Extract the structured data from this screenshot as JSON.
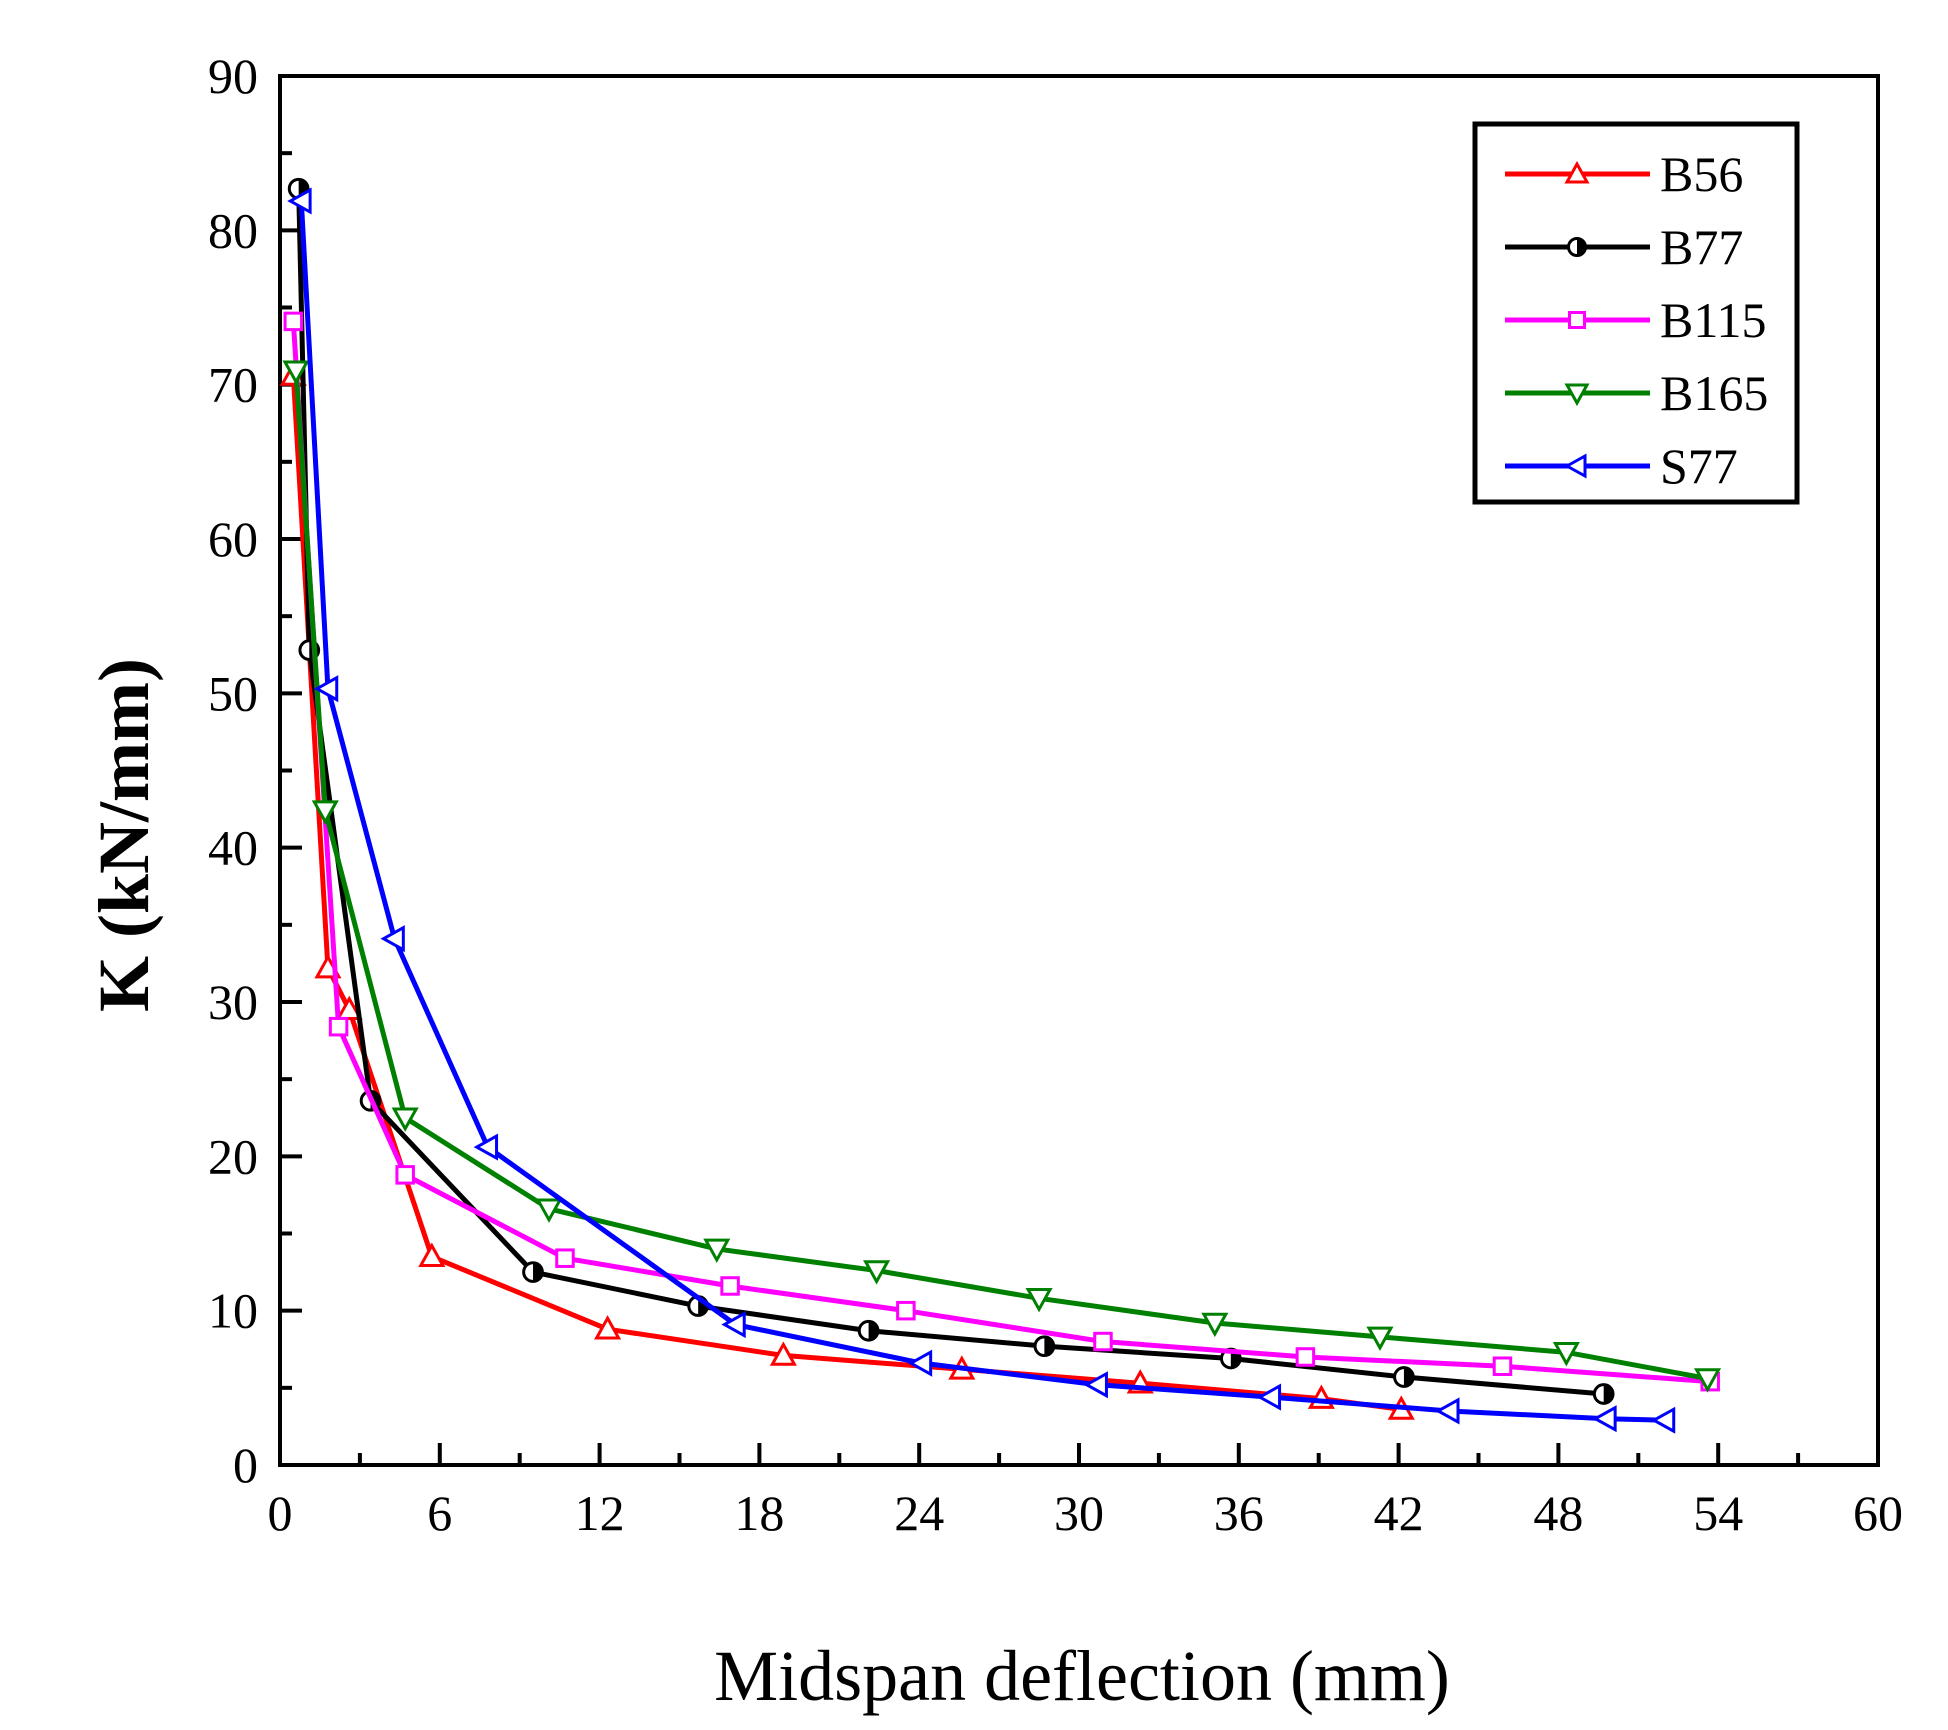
{
  "chart_data": {
    "type": "line",
    "title": "",
    "xlabel": "Midspan deflection (mm)",
    "ylabel": "K (kN/mm)",
    "xlim": [
      0,
      60
    ],
    "ylim": [
      0,
      90
    ],
    "xticks": [
      0,
      6,
      12,
      18,
      24,
      30,
      36,
      42,
      48,
      54,
      60
    ],
    "yticks": [
      0,
      10,
      20,
      30,
      40,
      50,
      60,
      70,
      80,
      90
    ],
    "grid": false,
    "legend_position": "top-right",
    "series": [
      {
        "name": "B56",
        "color": "#ff0000",
        "marker": "triangle-up",
        "x": [
          0.5,
          1.8,
          2.6,
          5.7,
          12.3,
          18.9,
          25.6,
          32.3,
          39.1,
          42.1
        ],
        "y": [
          70.6,
          32.2,
          29.5,
          13.5,
          8.8,
          7.1,
          6.2,
          5.3,
          4.3,
          3.6
        ]
      },
      {
        "name": "B77",
        "color": "#000000",
        "marker": "circle-half",
        "x": [
          0.7,
          1.1,
          3.4,
          9.5,
          15.7,
          22.1,
          28.7,
          35.7,
          42.2,
          49.7
        ],
        "y": [
          82.7,
          52.8,
          23.6,
          12.5,
          10.3,
          8.7,
          7.7,
          6.9,
          5.7,
          4.6
        ]
      },
      {
        "name": "B115",
        "color": "#ff00ff",
        "marker": "square",
        "x": [
          0.5,
          2.2,
          4.7,
          10.7,
          16.9,
          23.5,
          30.9,
          38.5,
          45.9,
          53.7
        ],
        "y": [
          74.1,
          28.4,
          18.8,
          13.4,
          11.6,
          10.0,
          8.0,
          7.0,
          6.4,
          5.4
        ]
      },
      {
        "name": "B165",
        "color": "#008000",
        "marker": "triangle-down",
        "x": [
          0.6,
          1.7,
          4.7,
          10.1,
          16.4,
          22.4,
          28.5,
          35.1,
          41.3,
          48.3,
          53.6
        ],
        "y": [
          70.9,
          42.4,
          22.5,
          16.6,
          14.0,
          12.6,
          10.8,
          9.2,
          8.3,
          7.3,
          5.6
        ]
      },
      {
        "name": "S77",
        "color": "#0000ff",
        "marker": "triangle-left",
        "x": [
          0.8,
          1.8,
          4.3,
          7.8,
          17.1,
          24.1,
          30.7,
          37.2,
          43.9,
          49.8,
          52.0
        ],
        "y": [
          81.9,
          50.3,
          34.1,
          20.6,
          9.1,
          6.6,
          5.2,
          4.4,
          3.5,
          3.0,
          2.9
        ]
      }
    ]
  }
}
